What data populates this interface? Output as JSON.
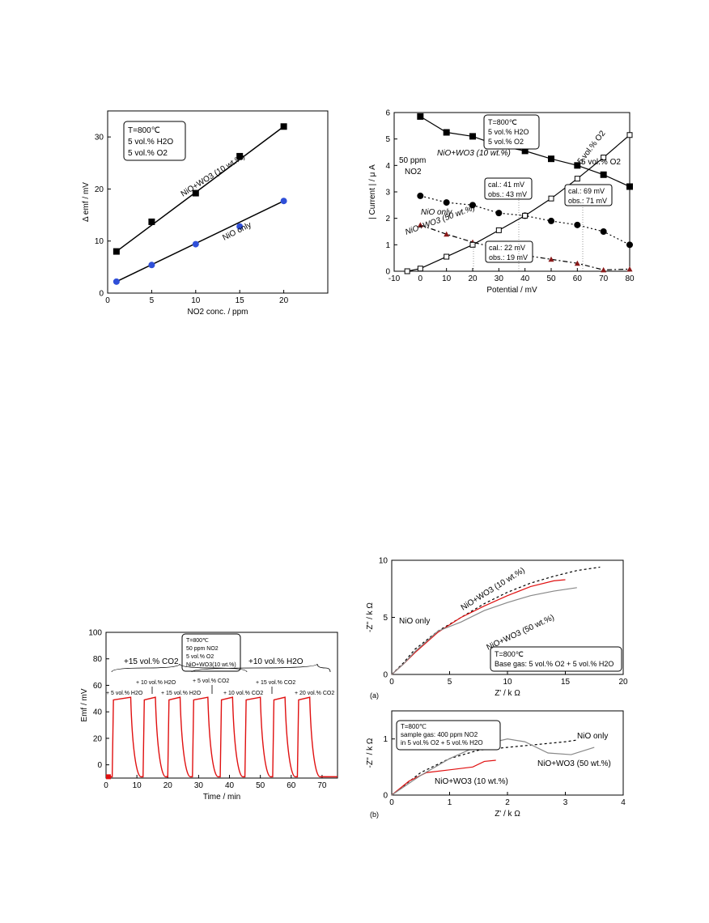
{
  "charts": [
    {
      "id": "c1",
      "type": "line",
      "xlabel": "NO2 conc. / ppm",
      "ylabel": "Δ emf / mV",
      "xlim": [
        0,
        25
      ],
      "ylim": [
        0,
        35
      ],
      "xticks": [
        0,
        5,
        10,
        15,
        20
      ],
      "yticks": [
        0,
        10,
        20,
        30
      ],
      "legend_box": [
        "T=800℃",
        "5 vol.% H2O",
        "5 vol.% O2"
      ],
      "series": [
        {
          "name": "NiO+WO3 (10 wt.%)",
          "marker": "square",
          "color": "#000000",
          "x": [
            1,
            5,
            10,
            15,
            20
          ],
          "y": [
            8,
            13.7,
            19.2,
            26.3,
            32
          ]
        },
        {
          "name": "NiO only",
          "marker": "circle",
          "color": "#2f4fd8",
          "x": [
            1,
            5,
            10,
            15,
            20
          ],
          "y": [
            2.2,
            5.4,
            9.4,
            12.8,
            17.7
          ]
        }
      ]
    },
    {
      "id": "c2",
      "type": "line",
      "xlabel": "Potential / mV",
      "ylabel": "| Current | / μ A",
      "xlim": [
        -10,
        80
      ],
      "ylim": [
        0,
        6
      ],
      "xticks": [
        -10,
        0,
        10,
        20,
        30,
        40,
        50,
        60,
        70,
        80
      ],
      "yticks": [
        0,
        1,
        2,
        3,
        4,
        5,
        6
      ],
      "legend_box": [
        "T=800℃",
        "5 vol.% H2O",
        "5 vol.% O2"
      ],
      "annotations": [
        "50 ppm",
        "NO2",
        "5 vol.% O2",
        "cal.: 41 mV",
        "obs.: 43 mV",
        "cal.: 69 mV",
        "obs.: 71 mV",
        "cal.: 22 mV",
        "obs.: 19 mV"
      ],
      "series": [
        {
          "name": "NiO+WO3 (10 wt.%)",
          "marker": "square",
          "dash": "",
          "x": [
            0,
            10,
            20,
            30,
            40,
            50,
            60,
            70,
            80
          ],
          "y": [
            5.85,
            5.25,
            5.1,
            4.75,
            4.55,
            4.25,
            4.0,
            3.65,
            3.2
          ]
        },
        {
          "name": "NiO only",
          "marker": "circle",
          "dash": "2,3",
          "x": [
            0,
            10,
            20,
            30,
            40,
            50,
            60,
            70,
            80
          ],
          "y": [
            2.85,
            2.6,
            2.5,
            2.2,
            2.1,
            1.9,
            1.75,
            1.5,
            1.0
          ]
        },
        {
          "name": "NiO+WO3 (50 wt.%)",
          "marker": "triangle",
          "dash": "6,3,2,3",
          "x": [
            0,
            10,
            20,
            30,
            40,
            50,
            60,
            70,
            80
          ],
          "y": [
            1.75,
            1.4,
            1.1,
            0.85,
            0.6,
            0.45,
            0.3,
            0.05,
            0.08
          ]
        },
        {
          "name": "5 vol.% O2",
          "marker": "open-square",
          "dash": "",
          "x": [
            -5,
            0,
            10,
            20,
            30,
            40,
            50,
            60,
            70,
            80
          ],
          "y": [
            0.0,
            0.1,
            0.55,
            1.0,
            1.55,
            2.1,
            2.75,
            3.5,
            4.3,
            5.15
          ]
        }
      ]
    },
    {
      "id": "c3",
      "type": "line",
      "xlabel": "Time / min",
      "ylabel": "Emf / mV",
      "xlim": [
        0,
        75
      ],
      "ylim": [
        -10,
        100
      ],
      "xticks": [
        0,
        10,
        20,
        30,
        40,
        50,
        60,
        70
      ],
      "yticks": [
        0,
        20,
        40,
        60,
        80,
        100
      ],
      "legend_box": [
        "T=800℃",
        "50 ppm NO2",
        "5 vol.% O2",
        "NiO+WO3(10 wt.%)"
      ],
      "annotations": [
        "+15 vol.% CO2",
        "+10 vol.% H2O",
        "+ 5 vol.% H2O",
        "+ 10 vol.% H2O",
        "+ 15 vol.% H2O",
        "+ 5 vol.% CO2",
        "+ 10 vol.% CO2",
        "+ 15 vol.% CO2",
        "+ 20 vol.% CO2"
      ],
      "series": [
        {
          "name": "Emf",
          "color": "#e01010",
          "pulses": [
            [
              2,
              8
            ],
            [
              12,
              16
            ],
            [
              20,
              24
            ],
            [
              28,
              33
            ],
            [
              37,
              41
            ],
            [
              45,
              50
            ],
            [
              54,
              58
            ],
            [
              62,
              66
            ]
          ],
          "baseline": -9,
          "plateau": 51
        }
      ]
    },
    {
      "id": "c4",
      "type": "line",
      "panel_label": "(a)",
      "xlabel": "Z'  /  k Ω",
      "ylabel": "-Z''  /  k Ω",
      "xlim": [
        0,
        20
      ],
      "ylim": [
        0,
        10
      ],
      "xticks": [
        0,
        5,
        10,
        15,
        20
      ],
      "yticks": [
        0,
        5,
        10
      ],
      "legend_box": [
        "T=800℃",
        "Base gas: 5 vol.% O2 + 5 vol.% H2O"
      ],
      "series": [
        {
          "name": "NiO only",
          "color": "#000000",
          "dash": "3,3",
          "x": [
            0,
            1,
            2,
            4,
            6,
            8,
            10,
            12,
            14,
            16,
            18
          ],
          "y": [
            0,
            1.0,
            2.2,
            3.8,
            5.0,
            6.2,
            7.2,
            8.0,
            8.6,
            9.1,
            9.4
          ]
        },
        {
          "name": "NiO+WO3 (10 wt.%)",
          "color": "#e01010",
          "dash": "",
          "x": [
            0,
            1,
            2,
            4,
            6,
            8,
            10,
            12,
            14,
            15
          ],
          "y": [
            0,
            0.9,
            1.9,
            3.7,
            5.0,
            6.0,
            6.9,
            7.7,
            8.2,
            8.3
          ]
        },
        {
          "name": "NiO+WO3 (50 wt.%)",
          "color": "#888888",
          "dash": "",
          "x": [
            0,
            1,
            2,
            4,
            6,
            8,
            10,
            12,
            14,
            16
          ],
          "y": [
            0,
            0.9,
            2.0,
            3.8,
            4.6,
            5.6,
            6.3,
            6.9,
            7.3,
            7.6
          ]
        }
      ]
    },
    {
      "id": "c5",
      "type": "line",
      "panel_label": "(b)",
      "xlabel": "Z'  /  k Ω",
      "ylabel": "-Z''  /  k Ω",
      "xlim": [
        0,
        4
      ],
      "ylim": [
        0,
        1.5
      ],
      "xticks": [
        0,
        1,
        2,
        3,
        4
      ],
      "yticks": [
        0,
        1
      ],
      "legend_box": [
        "T=800℃",
        "sample gas: 400 ppm NO2",
        "in 5 vol.% O2 + 5 vol.% H2O"
      ],
      "series": [
        {
          "name": "NiO only",
          "color": "#000000",
          "dash": "3,3",
          "x": [
            0,
            0.5,
            1.0,
            1.5,
            2.0,
            2.5,
            3.0,
            3.2
          ],
          "y": [
            0,
            0.4,
            0.65,
            0.8,
            0.85,
            0.9,
            0.95,
            0.98
          ]
        },
        {
          "name": "NiO+WO3 (10 wt.%)",
          "color": "#e01010",
          "dash": "",
          "x": [
            0,
            0.3,
            0.6,
            1.0,
            1.4,
            1.6,
            1.8
          ],
          "y": [
            0,
            0.25,
            0.4,
            0.45,
            0.5,
            0.6,
            0.62
          ]
        },
        {
          "name": "NiO+WO3 (50 wt.%)",
          "color": "#888888",
          "dash": "",
          "x": [
            0,
            0.5,
            1.0,
            1.5,
            2.0,
            2.3,
            2.7,
            3.1,
            3.5
          ],
          "y": [
            0,
            0.35,
            0.65,
            0.88,
            1.0,
            0.95,
            0.75,
            0.72,
            0.85
          ]
        }
      ]
    }
  ]
}
